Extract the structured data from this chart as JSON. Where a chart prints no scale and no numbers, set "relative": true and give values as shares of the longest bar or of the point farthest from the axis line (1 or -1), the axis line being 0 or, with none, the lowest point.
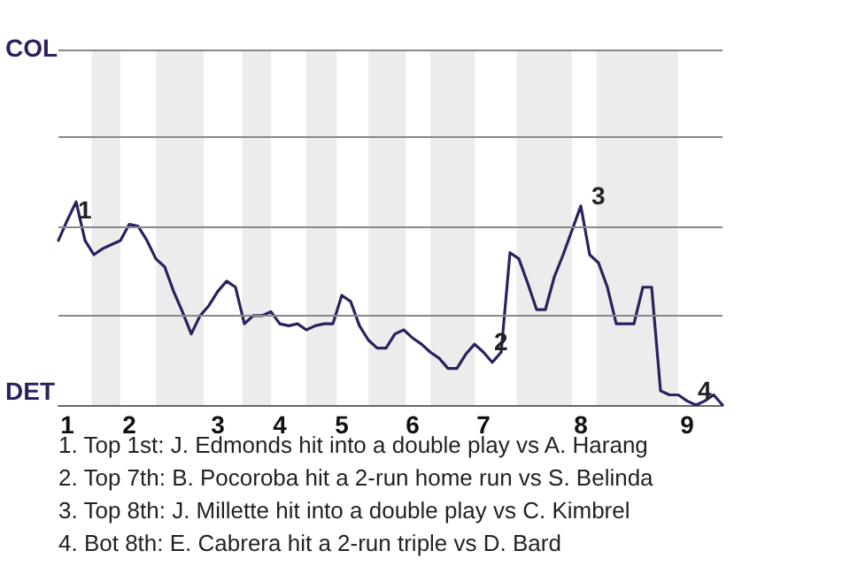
{
  "chart_data": {
    "type": "line",
    "relative": true,
    "categories": [
      null,
      "1",
      null,
      null,
      null,
      null,
      null,
      null,
      "2",
      null,
      null,
      null,
      null,
      null,
      null,
      null,
      null,
      null,
      "3",
      null,
      null,
      null,
      null,
      null,
      null,
      "4",
      null,
      null,
      null,
      null,
      null,
      null,
      "5",
      null,
      null,
      null,
      null,
      null,
      null,
      null,
      "6",
      null,
      null,
      null,
      null,
      null,
      null,
      null,
      "7",
      null,
      null,
      null,
      null,
      null,
      null,
      null,
      null,
      null,
      null,
      "8",
      null,
      null,
      null,
      null,
      null,
      null,
      null,
      null,
      null,
      null,
      null,
      "9",
      null,
      null,
      null,
      null
    ],
    "series": [
      {
        "color": "#2e1f5e",
        "values": [
          0.81,
          0.91,
          1,
          0.81,
          0.74,
          0.77,
          0.79,
          0.81,
          0.89,
          0.88,
          0.81,
          0.72,
          0.68,
          0.56,
          0.46,
          0.35,
          0.44,
          0.49,
          0.56,
          0.61,
          0.58,
          0.4,
          0.44,
          0.44,
          0.46,
          0.4,
          0.39,
          0.4,
          0.37,
          0.39,
          0.4,
          0.4,
          0.54,
          0.51,
          0.39,
          0.32,
          0.28,
          0.28,
          0.35,
          0.37,
          0.33,
          0.3,
          0.26,
          0.23,
          0.18,
          0.18,
          0.25,
          0.3,
          0.26,
          0.21,
          0.26,
          0.75,
          0.72,
          0.6,
          0.47,
          0.47,
          0.63,
          0.74,
          0.86,
          0.98,
          0.74,
          0.7,
          0.58,
          0.4,
          0.4,
          0.4,
          0.58,
          0.58,
          0.07,
          0.05,
          0.05,
          0.02,
          0,
          0.02,
          0.05,
          0
        ]
      }
    ],
    "marker": "none",
    "line_style": "solid",
    "ref_lines": [
      {
        "axis": "y",
        "value": 0.44,
        "color": "#888888"
      },
      {
        "axis": "y",
        "value": 0.88,
        "color": "#888888"
      },
      {
        "axis": "y",
        "value": 1.32,
        "color": "#888888"
      },
      {
        "axis": "y",
        "value": 1.75,
        "color": "#888888"
      }
    ],
    "annotations": [
      "COL",
      "DET",
      {
        "text": "1",
        "x": "1",
        "y": 0.91
      },
      {
        "text": "2",
        "x": "7",
        "y": 0.26
      },
      {
        "text": "3",
        "x": "8",
        "y": 0.98
      },
      {
        "text": "4",
        "x": "9",
        "y": 0.02
      },
      "1. Top 1st: J. Edmonds hit into a double play vs A. Harang",
      "2. Top 7th: B. Pocoroba hit a 2-run home run vs S. Belinda",
      "3. Top 8th: J. Millette hit into a double play vs C. Kimbrel",
      "4. Bot 8th: E. Cabrera hit a 2-run triple vs D. Bard"
    ]
  }
}
